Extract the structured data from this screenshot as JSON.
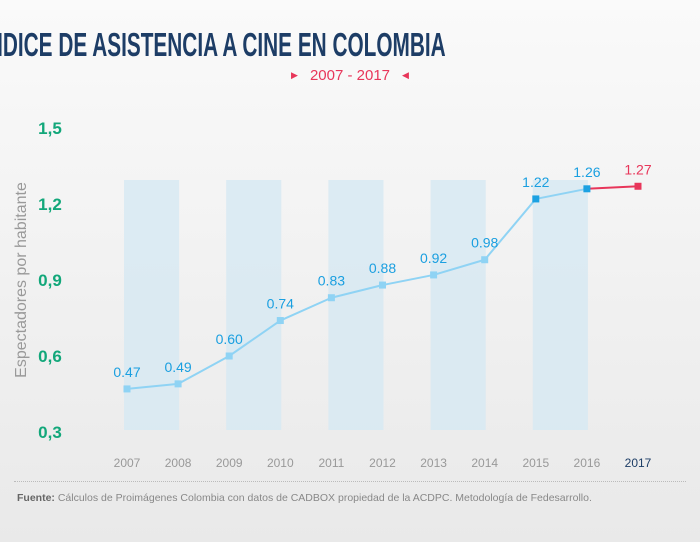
{
  "chart_data": {
    "type": "line",
    "title": "ÍNDICE DE ASISTENCIA A CINE EN COLOMBIA",
    "subtitle": "2007 - 2017",
    "ylabel": "Espectadores por habitante",
    "xlabel": "",
    "ylim": [
      0.3,
      1.5
    ],
    "yticks": [
      "1,5",
      "1,2",
      "0,9",
      "0,6",
      "0,3"
    ],
    "ytick_values": [
      1.5,
      1.2,
      0.9,
      0.6,
      0.3
    ],
    "categories": [
      "2007",
      "2008",
      "2009",
      "2010",
      "2011",
      "2012",
      "2013",
      "2014",
      "2015",
      "2016",
      "2017"
    ],
    "values": [
      0.47,
      0.49,
      0.6,
      0.74,
      0.83,
      0.88,
      0.92,
      0.98,
      1.22,
      1.26,
      1.27
    ],
    "labels": [
      "0.47",
      "0.49",
      "0.60",
      "0.74",
      "0.83",
      "0.88",
      "0.92",
      "0.98",
      "1.22",
      "1.26",
      "1.27"
    ],
    "grid": false,
    "colors": {
      "title": "#1d3d66",
      "line": "#8fd3f4",
      "highlight_point": "#1ba1e2",
      "label": "#1a9fe0",
      "latest": "#e8365a",
      "ytick": "#12a77a",
      "band": "#d6e8f2"
    }
  },
  "source": {
    "label": "Fuente:",
    "text": " Cálculos de Proimágenes Colombia con datos de CADBOX propiedad de la ACDPC. Metodología de Fedesarrollo."
  }
}
